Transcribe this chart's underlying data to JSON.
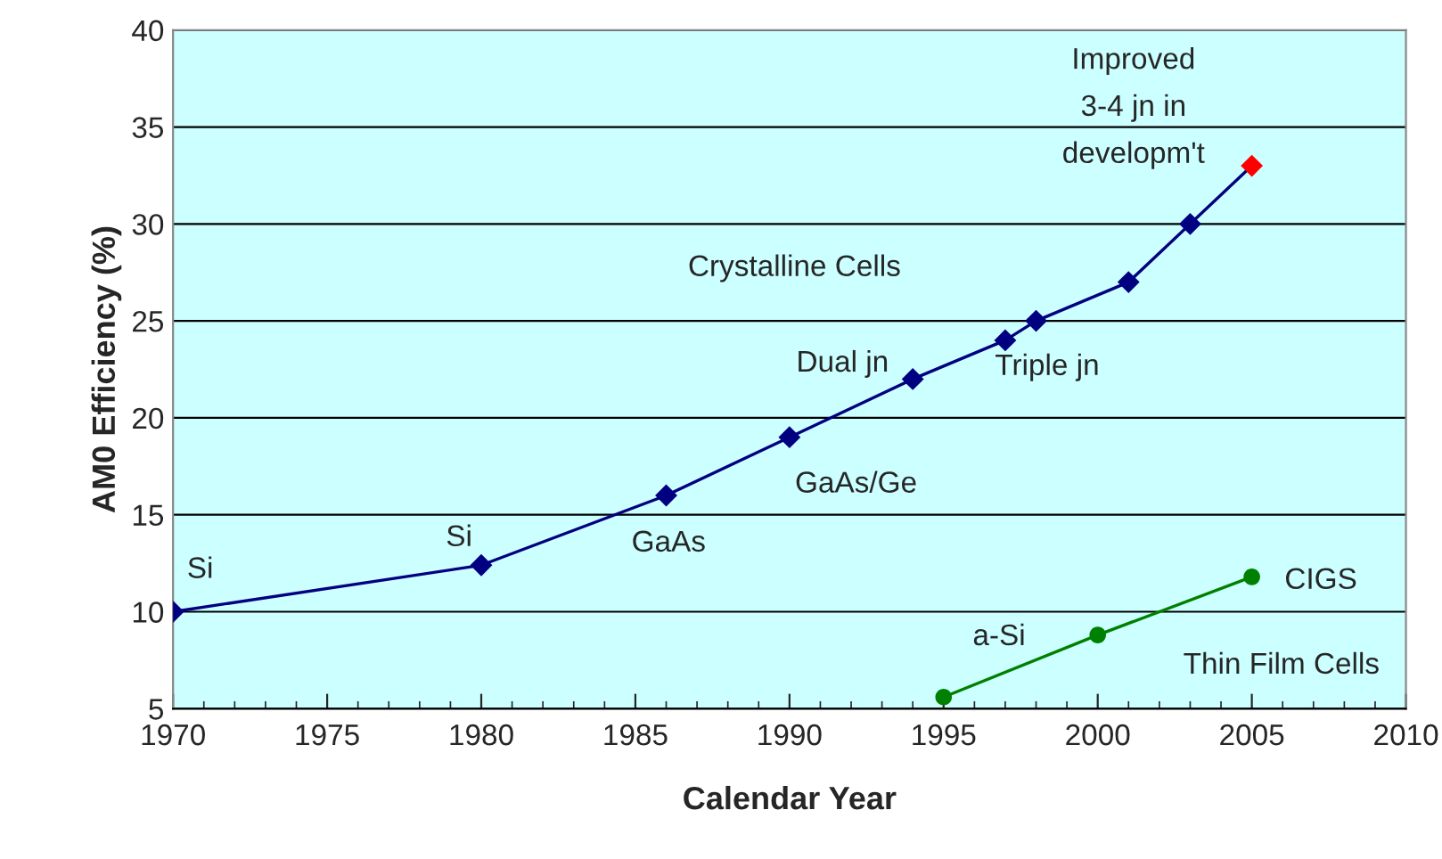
{
  "chart_data": {
    "type": "line",
    "xlabel": "Calendar Year",
    "ylabel": "AM0 Efficiency (%)",
    "xlim": [
      1970,
      2010
    ],
    "xticks": [
      1970,
      1975,
      1980,
      1985,
      1990,
      1995,
      2000,
      2005,
      2010
    ],
    "ylim": [
      5,
      40
    ],
    "yticks": [
      5,
      10,
      15,
      20,
      25,
      30,
      35,
      40
    ],
    "grid": "y",
    "legend": false,
    "series": [
      {
        "color": "#000080",
        "marker": "diamond",
        "x": [
          1970,
          1980,
          1986,
          1990,
          1994,
          1997,
          1998,
          2001,
          2003,
          2005
        ],
        "values": [
          10,
          12.4,
          16,
          19,
          22,
          24,
          25,
          27,
          30,
          33
        ],
        "colors": [
          "#000080",
          "#000080",
          "#000080",
          "#000080",
          "#000080",
          "#000080",
          "#000080",
          "#000080",
          "#000080",
          "#ff0000"
        ]
      },
      {
        "color": "#008000",
        "marker": "circle",
        "x": [
          1995,
          2000,
          2005
        ],
        "values": [
          5.6,
          8.8,
          11.8
        ]
      }
    ],
    "annotations": [
      "Si",
      "Si",
      "GaAs",
      "GaAs/Ge",
      "Dual jn",
      "Crystalline Cells",
      "Triple jn",
      "Improved\n3-4 jn in\ndevelopm't",
      "CIGS",
      "a-Si",
      "Thin Film Cells"
    ]
  }
}
